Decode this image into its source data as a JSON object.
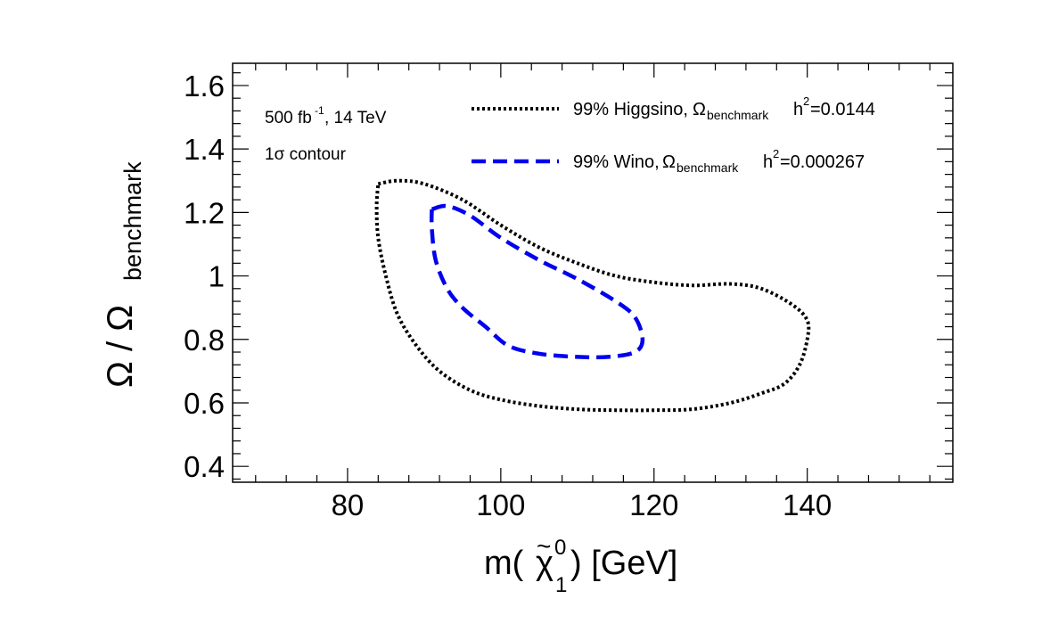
{
  "chart_data": {
    "type": "line",
    "title": "",
    "xlabel_main": "m(",
    "xlabel_chi": "χ",
    "xlabel_tilde": "~",
    "xlabel_sup": "0",
    "xlabel_sub": "1",
    "xlabel_unit": ") [GeV]",
    "ylabel_main": "Ω / Ω",
    "ylabel_sub": "benchmark",
    "xlim": [
      65,
      159
    ],
    "ylim": [
      0.35,
      1.67
    ],
    "xticks": [
      80,
      100,
      120,
      140
    ],
    "xtick_labels": [
      "80",
      "100",
      "120",
      "140"
    ],
    "yticks": [
      0.4,
      0.6,
      0.8,
      1.0,
      1.2,
      1.4,
      1.6
    ],
    "ytick_labels": [
      "0.4",
      "0.6",
      "0.8",
      "1",
      "1.2",
      "1.4",
      "1.6"
    ],
    "annotations": {
      "lumi_main": "500 fb",
      "lumi_sup": "-1",
      "lumi_rest": ", 14 TeV",
      "contour": "1σ contour"
    },
    "series": [
      {
        "name": "99% Higgsino",
        "legend_prefix": "99% Higgsino, ",
        "legend_omega": "Ω",
        "legend_sub": "benchmark",
        "legend_h": "h",
        "legend_sup": "2",
        "legend_value": "=0.0144",
        "color": "#000000",
        "style": "dotted",
        "x": [
          84.0,
          86.5,
          90,
          95,
          100,
          105,
          110,
          115,
          120,
          125,
          130,
          134,
          138,
          140,
          140.0,
          139,
          137,
          134,
          130,
          125,
          120,
          115,
          110,
          105,
          100,
          96,
          92,
          89,
          86.5,
          85,
          84.0,
          83.8,
          84.0
        ],
        "y": [
          1.29,
          1.3,
          1.29,
          1.24,
          1.16,
          1.09,
          1.04,
          1.0,
          0.98,
          0.97,
          0.975,
          0.96,
          0.91,
          0.86,
          0.8,
          0.72,
          0.66,
          0.63,
          0.6,
          0.58,
          0.577,
          0.577,
          0.58,
          0.59,
          0.61,
          0.64,
          0.7,
          0.78,
          0.88,
          1.0,
          1.12,
          1.22,
          1.29
        ]
      },
      {
        "name": "99% Wino",
        "legend_prefix": "99% Wino, ",
        "legend_omega": "Ω",
        "legend_sub": "benchmark",
        "legend_h": "h",
        "legend_sup": "2",
        "legend_value": "=0.000267",
        "color": "#0000ee",
        "style": "dashed",
        "x": [
          91,
          93,
          96,
          100,
          105,
          110,
          115,
          117.5,
          118.5,
          117.5,
          114,
          110,
          105,
          101,
          98,
          95,
          93,
          91.5,
          91,
          91
        ],
        "y": [
          1.21,
          1.22,
          1.19,
          1.12,
          1.05,
          0.99,
          0.92,
          0.87,
          0.8,
          0.76,
          0.745,
          0.745,
          0.755,
          0.78,
          0.84,
          0.9,
          0.96,
          1.05,
          1.15,
          1.21
        ]
      }
    ]
  }
}
